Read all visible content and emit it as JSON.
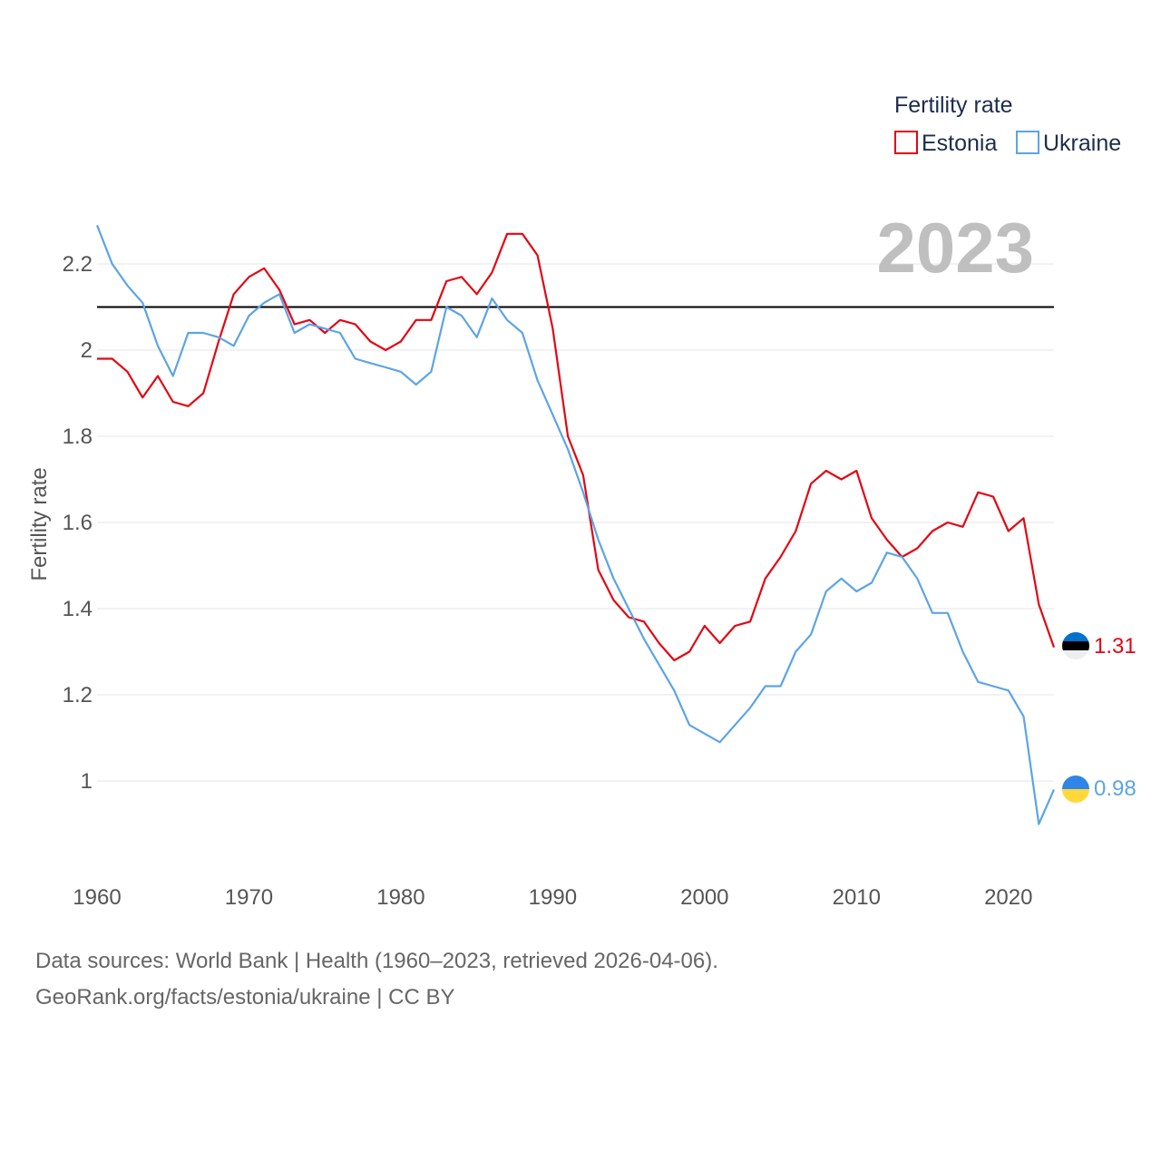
{
  "chart_data": {
    "type": "line",
    "title": "",
    "xlabel": "",
    "ylabel": "Fertility rate",
    "xlim": [
      1960,
      2023
    ],
    "ylim": [
      0.8,
      2.35
    ],
    "xticks": [
      1960,
      1970,
      1980,
      1990,
      2000,
      2010,
      2020
    ],
    "yticks": [
      1,
      1.2,
      1.4,
      1.6,
      1.8,
      2,
      2.2
    ],
    "ytick_labels": [
      "1",
      "1.2",
      "1.4",
      "1.6",
      "1.8",
      "2",
      "2.2"
    ],
    "reference_line": 2.1,
    "year_label": "2023",
    "legend": {
      "title": "Fertility rate",
      "position": "top-right"
    },
    "x": [
      1960,
      1961,
      1962,
      1963,
      1964,
      1965,
      1966,
      1967,
      1968,
      1969,
      1970,
      1971,
      1972,
      1973,
      1974,
      1975,
      1976,
      1977,
      1978,
      1979,
      1980,
      1981,
      1982,
      1983,
      1984,
      1985,
      1986,
      1987,
      1988,
      1989,
      1990,
      1991,
      1992,
      1993,
      1994,
      1995,
      1996,
      1997,
      1998,
      1999,
      2000,
      2001,
      2002,
      2003,
      2004,
      2005,
      2006,
      2007,
      2008,
      2009,
      2010,
      2011,
      2012,
      2013,
      2014,
      2015,
      2016,
      2017,
      2018,
      2019,
      2020,
      2021,
      2022,
      2023
    ],
    "series": [
      {
        "name": "Estonia",
        "color": "#e30613",
        "end_label": "1.31",
        "values": [
          1.98,
          1.98,
          1.95,
          1.89,
          1.94,
          1.88,
          1.87,
          1.9,
          2.02,
          2.13,
          2.17,
          2.19,
          2.14,
          2.06,
          2.07,
          2.04,
          2.07,
          2.06,
          2.02,
          2.0,
          2.02,
          2.07,
          2.07,
          2.16,
          2.17,
          2.13,
          2.18,
          2.27,
          2.27,
          2.22,
          2.05,
          1.8,
          1.71,
          1.49,
          1.42,
          1.38,
          1.37,
          1.32,
          1.28,
          1.3,
          1.36,
          1.32,
          1.36,
          1.37,
          1.47,
          1.52,
          1.58,
          1.69,
          1.72,
          1.7,
          1.72,
          1.61,
          1.56,
          1.52,
          1.54,
          1.58,
          1.6,
          1.59,
          1.67,
          1.66,
          1.58,
          1.61,
          1.41,
          1.31
        ]
      },
      {
        "name": "Ukraine",
        "color": "#5ca4e6",
        "end_label": "0.98",
        "values": [
          2.29,
          2.2,
          2.15,
          2.11,
          2.01,
          1.94,
          2.04,
          2.04,
          2.03,
          2.01,
          2.08,
          2.11,
          2.13,
          2.04,
          2.06,
          2.05,
          2.04,
          1.98,
          1.97,
          1.96,
          1.95,
          1.92,
          1.95,
          2.1,
          2.08,
          2.03,
          2.12,
          2.07,
          2.04,
          1.93,
          1.85,
          1.77,
          1.67,
          1.56,
          1.47,
          1.4,
          1.33,
          1.27,
          1.21,
          1.13,
          1.11,
          1.09,
          1.13,
          1.17,
          1.22,
          1.22,
          1.3,
          1.34,
          1.44,
          1.47,
          1.44,
          1.46,
          1.53,
          1.52,
          1.47,
          1.39,
          1.39,
          1.3,
          1.23,
          1.22,
          1.21,
          1.15,
          0.9,
          0.98
        ]
      }
    ]
  },
  "footer": {
    "line1": "Data sources: World Bank | Health (1960–2023, retrieved 2026-04-06).",
    "line2": "GeoRank.org/facts/estonia/ukraine | CC BY"
  }
}
